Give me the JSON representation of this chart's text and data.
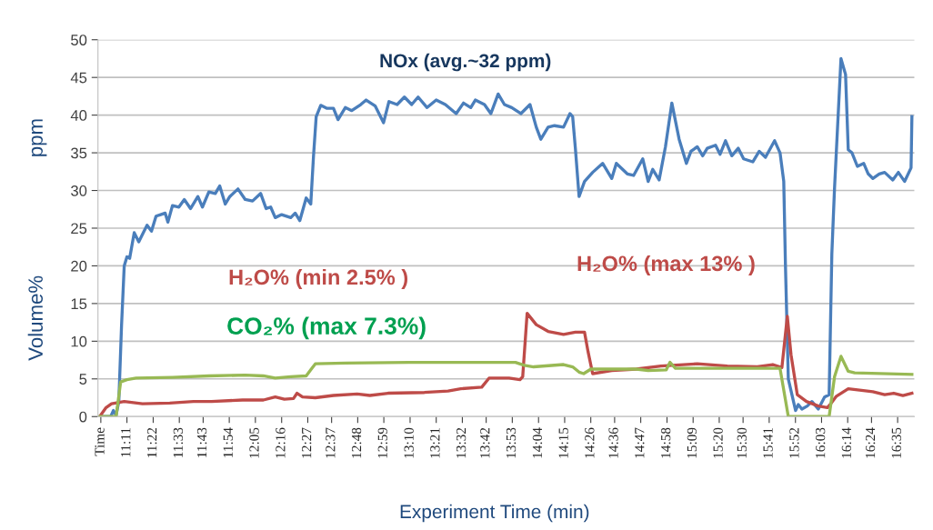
{
  "chart_data": {
    "type": "line",
    "xlabel": "Experiment Time (min)",
    "ylabel": "ppm",
    "annotations": [
      "Volume%",
      {
        "text": "H₂O% (max 13% )",
        "x": 13.987,
        "y": 13.7
      }
    ],
    "xlim": [
      10.98,
      16.7
    ],
    "ylim": [
      0,
      50
    ],
    "yticks": [
      0,
      5,
      10,
      15,
      20,
      25,
      30,
      35,
      40,
      45,
      50
    ],
    "xticks": [
      {
        "value": 11.0,
        "label": "Time"
      },
      {
        "value": 11.183,
        "label": "11:11"
      },
      {
        "value": 11.367,
        "label": "11:22"
      },
      {
        "value": 11.55,
        "label": "11:33"
      },
      {
        "value": 11.717,
        "label": "11:43"
      },
      {
        "value": 11.9,
        "label": "11:54"
      },
      {
        "value": 12.083,
        "label": "12:05"
      },
      {
        "value": 12.267,
        "label": "12:16"
      },
      {
        "value": 12.45,
        "label": "12:27"
      },
      {
        "value": 12.617,
        "label": "12:37"
      },
      {
        "value": 12.8,
        "label": "12:48"
      },
      {
        "value": 12.983,
        "label": "12:59"
      },
      {
        "value": 13.167,
        "label": "13:10"
      },
      {
        "value": 13.35,
        "label": "13:21"
      },
      {
        "value": 13.533,
        "label": "13:32"
      },
      {
        "value": 13.7,
        "label": "13:42"
      },
      {
        "value": 13.883,
        "label": "13:53"
      },
      {
        "value": 14.067,
        "label": "14:04"
      },
      {
        "value": 14.25,
        "label": "14:15"
      },
      {
        "value": 14.433,
        "label": "14:26"
      },
      {
        "value": 14.6,
        "label": "14:36"
      },
      {
        "value": 14.783,
        "label": "14:47"
      },
      {
        "value": 14.967,
        "label": "14:58"
      },
      {
        "value": 15.15,
        "label": "15:09"
      },
      {
        "value": 15.333,
        "label": "15:20"
      },
      {
        "value": 15.5,
        "label": "15:30"
      },
      {
        "value": 15.683,
        "label": "15:41"
      },
      {
        "value": 15.867,
        "label": "15:52"
      },
      {
        "value": 16.05,
        "label": "16:03"
      },
      {
        "value": 16.233,
        "label": "16:14"
      },
      {
        "value": 16.4,
        "label": "16:24"
      },
      {
        "value": 16.583,
        "label": "16:35"
      }
    ],
    "grid": "y",
    "marker": "none",
    "line_style": "solid",
    "series": [
      {
        "name": "NOx (avg.~32 ppm)",
        "color": "#4a7ebb",
        "x": [
          11.011,
          11.069,
          11.088,
          11.107,
          11.126,
          11.145,
          11.164,
          11.183,
          11.202,
          11.234,
          11.266,
          11.324,
          11.355,
          11.387,
          11.419,
          11.451,
          11.47,
          11.502,
          11.547,
          11.585,
          11.629,
          11.68,
          11.712,
          11.757,
          11.802,
          11.833,
          11.872,
          11.904,
          11.961,
          12.012,
          12.063,
          12.12,
          12.158,
          12.19,
          12.222,
          12.267,
          12.331,
          12.362,
          12.394,
          12.439,
          12.471,
          12.49,
          12.509,
          12.541,
          12.585,
          12.63,
          12.662,
          12.713,
          12.758,
          12.821,
          12.859,
          12.923,
          12.981,
          13.019,
          13.076,
          13.127,
          13.178,
          13.223,
          13.286,
          13.35,
          13.414,
          13.49,
          13.541,
          13.592,
          13.624,
          13.688,
          13.733,
          13.784,
          13.828,
          13.879,
          13.943,
          14.007,
          14.051,
          14.083,
          14.134,
          14.179,
          14.242,
          14.287,
          14.306,
          14.325,
          14.351,
          14.389,
          14.446,
          14.516,
          14.58,
          14.612,
          14.689,
          14.733,
          14.797,
          14.835,
          14.867,
          14.912,
          14.956,
          15.001,
          15.052,
          15.103,
          15.135,
          15.179,
          15.217,
          15.249,
          15.307,
          15.339,
          15.377,
          15.421,
          15.466,
          15.504,
          15.568,
          15.613,
          15.657,
          15.721,
          15.759,
          15.785,
          15.797,
          15.817,
          15.868,
          15.887,
          15.912,
          15.95,
          15.982,
          16.027,
          16.071,
          16.103,
          16.122,
          16.141,
          16.186,
          16.218,
          16.237,
          16.263,
          16.301,
          16.345,
          16.377,
          16.409,
          16.454,
          16.492,
          16.549,
          16.588,
          16.632,
          16.677,
          16.683
        ],
        "values": [
          0,
          0,
          0.8,
          0.2,
          2,
          12,
          20,
          21.2,
          21,
          24.4,
          23.2,
          25.4,
          24.6,
          26.6,
          26.8,
          27,
          25.8,
          28,
          27.8,
          28.8,
          27.6,
          29.2,
          27.8,
          29.8,
          29.6,
          30.6,
          28.2,
          29.2,
          30.2,
          28.8,
          28.6,
          29.6,
          27.6,
          27.8,
          26.4,
          26.8,
          26.4,
          27,
          26,
          29,
          28.2,
          34.5,
          39.8,
          41.3,
          40.9,
          40.9,
          39.4,
          41,
          40.6,
          41.4,
          42,
          41.2,
          39,
          41.8,
          41.4,
          42.4,
          41.4,
          42.4,
          41,
          42,
          41.4,
          40.2,
          41.6,
          41,
          42,
          41.4,
          40.2,
          42.8,
          41.4,
          41,
          40.2,
          41.4,
          38.4,
          36.8,
          38.4,
          38.6,
          38.4,
          40.2,
          39.8,
          35.6,
          29.2,
          31.2,
          32.4,
          33.6,
          31.6,
          33.6,
          32.2,
          32,
          34.2,
          31.2,
          32.8,
          31.4,
          35.8,
          41.6,
          36.8,
          33.6,
          35.2,
          35.8,
          34.6,
          35.6,
          36,
          34.8,
          36.6,
          34.6,
          35.6,
          34.2,
          33.8,
          35.2,
          34.4,
          36.6,
          35,
          31.2,
          20,
          5,
          0.8,
          1.6,
          1,
          1.4,
          2,
          1,
          2.6,
          2.9,
          21.6,
          30.4,
          47.5,
          45.4,
          35.4,
          35,
          33.2,
          33.6,
          32.2,
          31.6,
          32.2,
          32.4,
          31.4,
          32.4,
          31.2,
          33,
          39.8
        ]
      },
      {
        "name": "H₂O% (min 2.5% )",
        "color": "#be4b48",
        "x": [
          10.992,
          11.037,
          11.075,
          11.164,
          11.292,
          11.483,
          11.649,
          11.776,
          11.993,
          12.139,
          12.222,
          12.286,
          12.35,
          12.375,
          12.413,
          12.503,
          12.63,
          12.796,
          12.885,
          13.012,
          13.267,
          13.433,
          13.522,
          13.669,
          13.72,
          13.86,
          13.937,
          13.956,
          13.987,
          14.051,
          14.134,
          14.242,
          14.325,
          14.389,
          14.414,
          14.446,
          14.58,
          14.752,
          14.924,
          15.179,
          15.39,
          15.6,
          15.708,
          15.772,
          15.81,
          15.836,
          15.88,
          15.944,
          16.027,
          16.091,
          16.11,
          16.154,
          16.237,
          16.409,
          16.492,
          16.556,
          16.62,
          16.683
        ],
        "values": [
          0,
          1.2,
          1.7,
          2,
          1.7,
          1.8,
          2,
          2,
          2.2,
          2.2,
          2.6,
          2.3,
          2.4,
          3.1,
          2.6,
          2.5,
          2.8,
          3,
          2.8,
          3.1,
          3.2,
          3.4,
          3.7,
          3.9,
          5.1,
          5.1,
          4.9,
          5.3,
          13.7,
          12.2,
          11.3,
          10.9,
          11.2,
          11.2,
          8.6,
          5.7,
          6.1,
          6.3,
          6.7,
          7,
          6.7,
          6.6,
          6.9,
          6.5,
          13.3,
          8.2,
          2.9,
          2,
          1.4,
          1.2,
          1.6,
          2.7,
          3.7,
          3.3,
          2.9,
          3.1,
          2.8,
          3.1
        ]
      },
      {
        "name": "CO₂% (max 7.3%)",
        "color": "#98b954",
        "x": [
          10.992,
          11.107,
          11.139,
          11.183,
          11.247,
          11.502,
          11.757,
          12.012,
          12.139,
          12.222,
          12.331,
          12.439,
          12.471,
          12.503,
          12.713,
          13.159,
          13.478,
          13.905,
          13.968,
          14.032,
          14.242,
          14.306,
          14.351,
          14.383,
          14.434,
          14.752,
          14.835,
          14.962,
          14.988,
          15.026,
          15.759,
          15.817,
          16.103,
          16.141,
          16.186,
          16.237,
          16.282,
          16.683
        ],
        "values": [
          0,
          0,
          4.6,
          4.9,
          5.1,
          5.2,
          5.4,
          5.5,
          5.4,
          5.1,
          5.3,
          5.4,
          6.2,
          7,
          7.1,
          7.2,
          7.2,
          7.2,
          6.8,
          6.6,
          6.9,
          6.6,
          5.9,
          5.7,
          6.3,
          6.3,
          6.1,
          6.2,
          7.2,
          6.4,
          6.4,
          0,
          0,
          5.3,
          8,
          6,
          5.8,
          5.6
        ]
      }
    ]
  }
}
